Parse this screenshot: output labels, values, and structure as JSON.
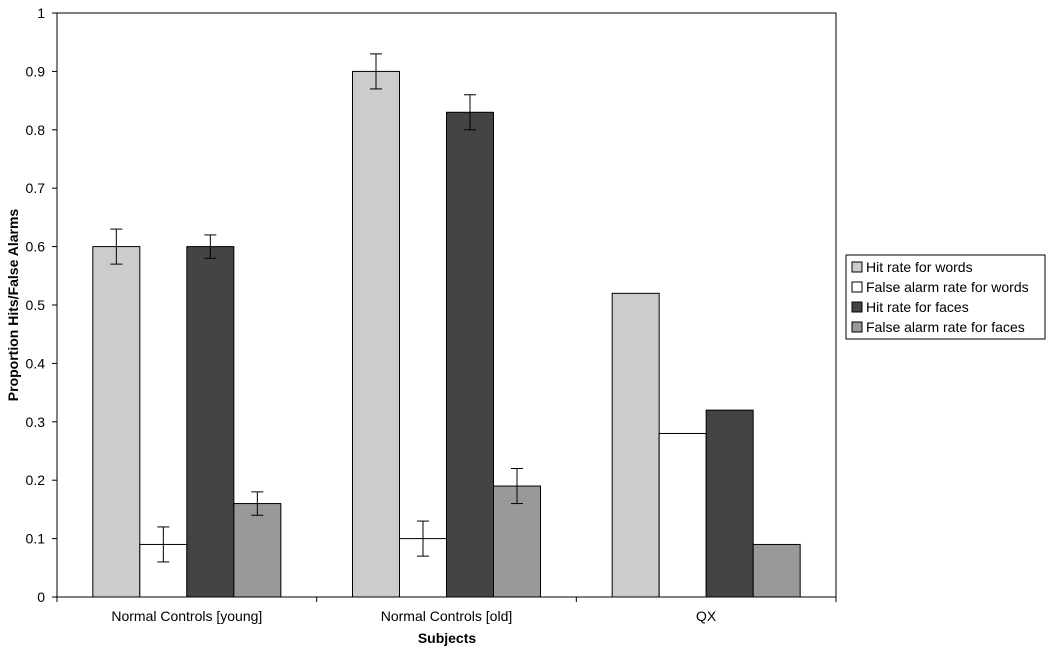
{
  "chart_data": {
    "type": "bar",
    "title": "",
    "xlabel": "Subjects",
    "ylabel": "Proportion Hits/False Alarms",
    "ylim": [
      0,
      1
    ],
    "yticks": [
      0,
      0.1,
      0.2,
      0.3,
      0.4,
      0.5,
      0.6,
      0.7,
      0.8,
      0.9,
      1
    ],
    "ytick_labels": [
      "0",
      "0.1",
      "0.2",
      "0.3",
      "0.4",
      "0.5",
      "0.6",
      "0.7",
      "0.8",
      "0.9",
      "1"
    ],
    "grid": false,
    "legend_position": "right",
    "categories": [
      "Normal Controls [young]",
      "Normal Controls [old]",
      "QX"
    ],
    "series": [
      {
        "name": "Hit rate for words",
        "color": "#cccccc",
        "values": [
          0.6,
          0.9,
          0.52
        ],
        "errors": [
          0.03,
          0.03,
          null
        ]
      },
      {
        "name": "False alarm rate for words",
        "color": "#ffffff",
        "values": [
          0.09,
          0.1,
          0.28
        ],
        "errors": [
          0.03,
          0.03,
          null
        ]
      },
      {
        "name": "Hit rate for faces",
        "color": "#444444",
        "values": [
          0.6,
          0.83,
          0.32
        ],
        "errors": [
          0.02,
          0.03,
          null
        ]
      },
      {
        "name": "False alarm rate for faces",
        "color": "#999999",
        "values": [
          0.16,
          0.19,
          0.09
        ],
        "errors": [
          0.02,
          0.03,
          null
        ]
      }
    ]
  }
}
